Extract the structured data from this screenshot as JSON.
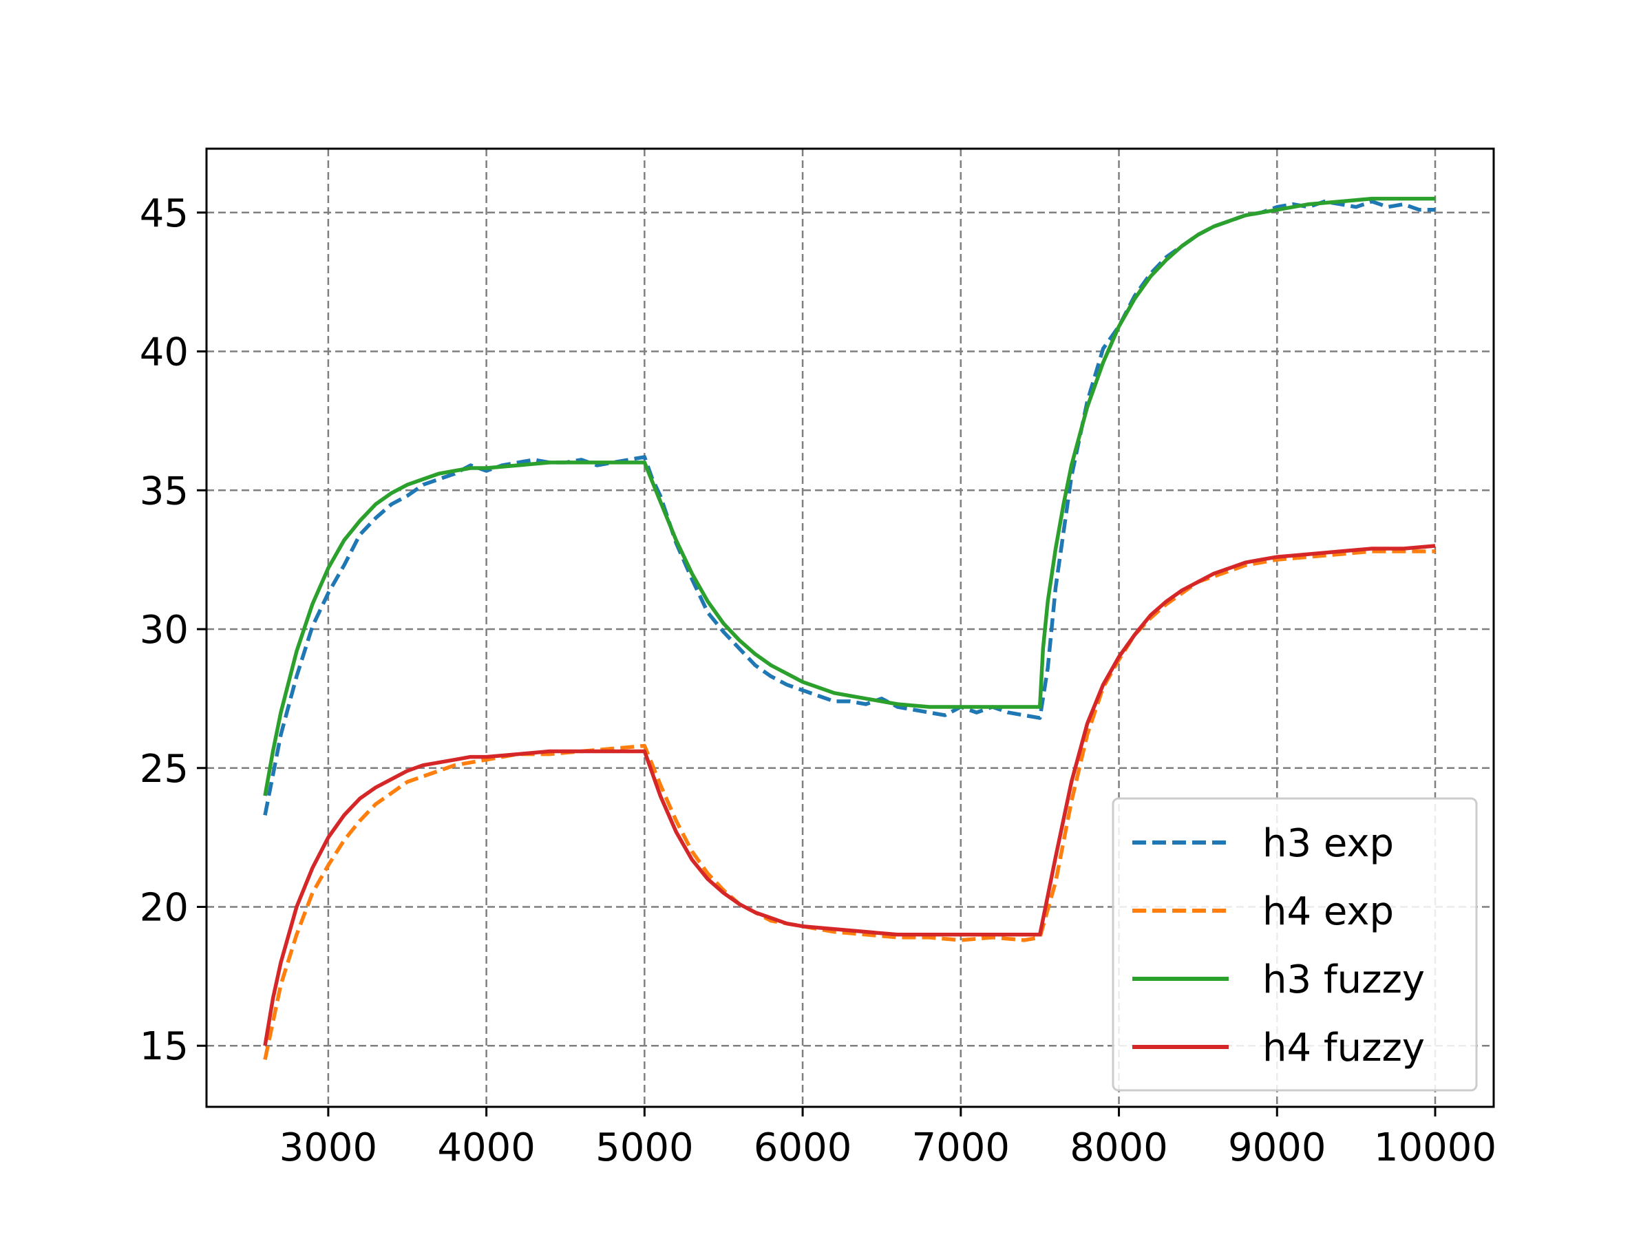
{
  "chart_data": {
    "type": "line",
    "title": "",
    "xlabel": "",
    "ylabel": "",
    "xlim": [
      2230,
      10370
    ],
    "ylim": [
      12.8,
      47.3
    ],
    "xticks": [
      3000,
      4000,
      5000,
      6000,
      7000,
      8000,
      9000,
      10000
    ],
    "yticks": [
      15,
      20,
      25,
      30,
      35,
      40,
      45
    ],
    "grid": true,
    "legend_position": "lower-right",
    "series": [
      {
        "name": "h3 exp",
        "style": "dashed",
        "color": "#1f77b4",
        "x": [
          2600,
          2700,
          2800,
          2900,
          3000,
          3100,
          3200,
          3300,
          3400,
          3500,
          3600,
          3700,
          3800,
          3900,
          4000,
          4100,
          4200,
          4300,
          4400,
          4500,
          4600,
          4700,
          4800,
          4900,
          5000,
          5050,
          5100,
          5200,
          5300,
          5400,
          5500,
          5600,
          5700,
          5800,
          5900,
          6000,
          6100,
          6200,
          6300,
          6400,
          6500,
          6600,
          6700,
          6800,
          6900,
          7000,
          7100,
          7200,
          7300,
          7400,
          7500,
          7550,
          7600,
          7650,
          7700,
          7800,
          7900,
          8000,
          8100,
          8200,
          8300,
          8400,
          8500,
          8600,
          8700,
          8800,
          8900,
          9000,
          9100,
          9200,
          9300,
          9400,
          9500,
          9600,
          9700,
          9800,
          9900,
          10000
        ],
        "y": [
          23.3,
          26.2,
          28.3,
          30.1,
          31.3,
          32.3,
          33.4,
          34.0,
          34.5,
          34.8,
          35.2,
          35.4,
          35.6,
          35.9,
          35.7,
          35.9,
          36.0,
          36.1,
          36.0,
          36.0,
          36.1,
          35.9,
          36.0,
          36.1,
          36.2,
          35.4,
          34.8,
          33.1,
          31.8,
          30.6,
          29.9,
          29.3,
          28.7,
          28.3,
          28.0,
          27.8,
          27.6,
          27.4,
          27.4,
          27.3,
          27.5,
          27.2,
          27.1,
          27.0,
          26.9,
          27.2,
          27.0,
          27.2,
          27.0,
          26.9,
          26.8,
          28.6,
          31.5,
          33.5,
          35.5,
          38.2,
          40.1,
          40.9,
          42.0,
          42.8,
          43.4,
          43.8,
          44.2,
          44.5,
          44.7,
          44.9,
          45.0,
          45.2,
          45.3,
          45.2,
          45.4,
          45.3,
          45.2,
          45.4,
          45.2,
          45.3,
          45.1,
          45.1
        ]
      },
      {
        "name": "h4 exp",
        "style": "dashed",
        "color": "#ff7f0e",
        "x": [
          2600,
          2700,
          2800,
          2900,
          3000,
          3100,
          3200,
          3300,
          3400,
          3500,
          3600,
          3700,
          3800,
          3900,
          4000,
          4200,
          4400,
          4600,
          4800,
          5000,
          5100,
          5200,
          5300,
          5400,
          5500,
          5600,
          5700,
          5800,
          5900,
          6000,
          6200,
          6400,
          6600,
          6800,
          7000,
          7200,
          7400,
          7500,
          7600,
          7700,
          7800,
          7900,
          8000,
          8100,
          8200,
          8300,
          8400,
          8500,
          8600,
          8700,
          8800,
          8900,
          9000,
          9200,
          9400,
          9600,
          9800,
          10000
        ],
        "y": [
          14.5,
          17.2,
          19.0,
          20.5,
          21.5,
          22.4,
          23.1,
          23.7,
          24.1,
          24.5,
          24.7,
          24.9,
          25.1,
          25.2,
          25.3,
          25.5,
          25.5,
          25.6,
          25.7,
          25.8,
          24.4,
          23.1,
          22.0,
          21.2,
          20.6,
          20.1,
          19.8,
          19.5,
          19.4,
          19.3,
          19.1,
          19.0,
          18.9,
          18.9,
          18.8,
          18.9,
          18.8,
          18.9,
          20.9,
          23.8,
          26.2,
          27.9,
          28.9,
          29.8,
          30.4,
          30.9,
          31.3,
          31.7,
          31.9,
          32.1,
          32.3,
          32.4,
          32.5,
          32.6,
          32.7,
          32.8,
          32.8,
          32.8
        ]
      },
      {
        "name": "h3 fuzzy",
        "style": "solid",
        "color": "#2ca02c",
        "x": [
          2600,
          2650,
          2700,
          2800,
          2900,
          3000,
          3100,
          3200,
          3300,
          3400,
          3500,
          3600,
          3700,
          3800,
          3900,
          4000,
          4200,
          4400,
          4600,
          4800,
          5000,
          5050,
          5100,
          5200,
          5300,
          5400,
          5500,
          5600,
          5700,
          5800,
          5900,
          6000,
          6200,
          6400,
          6600,
          6800,
          7000,
          7200,
          7400,
          7500,
          7520,
          7550,
          7600,
          7650,
          7700,
          7800,
          7900,
          8000,
          8100,
          8200,
          8300,
          8400,
          8500,
          8600,
          8700,
          8800,
          8900,
          9000,
          9200,
          9400,
          9600,
          9800,
          10000
        ],
        "y": [
          24.0,
          25.6,
          27.0,
          29.2,
          30.9,
          32.2,
          33.2,
          33.9,
          34.5,
          34.9,
          35.2,
          35.4,
          35.6,
          35.7,
          35.8,
          35.8,
          35.9,
          36.0,
          36.0,
          36.0,
          36.0,
          35.3,
          34.6,
          33.2,
          32.0,
          31.0,
          30.2,
          29.6,
          29.1,
          28.7,
          28.4,
          28.1,
          27.7,
          27.5,
          27.3,
          27.2,
          27.2,
          27.2,
          27.2,
          27.2,
          29.3,
          31.0,
          32.9,
          34.5,
          35.9,
          38.0,
          39.6,
          40.9,
          41.9,
          42.7,
          43.3,
          43.8,
          44.2,
          44.5,
          44.7,
          44.9,
          45.0,
          45.1,
          45.3,
          45.4,
          45.5,
          45.5,
          45.5
        ]
      },
      {
        "name": "h4 fuzzy",
        "style": "solid",
        "color": "#d62728",
        "x": [
          2600,
          2650,
          2700,
          2800,
          2900,
          3000,
          3100,
          3200,
          3300,
          3400,
          3500,
          3600,
          3700,
          3800,
          3900,
          4000,
          4200,
          4400,
          4600,
          4800,
          5000,
          5100,
          5200,
          5300,
          5400,
          5500,
          5600,
          5700,
          5800,
          5900,
          6000,
          6200,
          6400,
          6600,
          6800,
          7000,
          7200,
          7400,
          7500,
          7550,
          7600,
          7700,
          7800,
          7900,
          8000,
          8100,
          8200,
          8300,
          8400,
          8500,
          8600,
          8700,
          8800,
          8900,
          9000,
          9200,
          9400,
          9600,
          9800,
          10000
        ],
        "y": [
          15.0,
          16.7,
          18.0,
          20.0,
          21.4,
          22.5,
          23.3,
          23.9,
          24.3,
          24.6,
          24.9,
          25.1,
          25.2,
          25.3,
          25.4,
          25.4,
          25.5,
          25.6,
          25.6,
          25.6,
          25.6,
          24.0,
          22.7,
          21.7,
          21.0,
          20.5,
          20.1,
          19.8,
          19.6,
          19.4,
          19.3,
          19.2,
          19.1,
          19.0,
          19.0,
          19.0,
          19.0,
          19.0,
          19.0,
          20.4,
          21.8,
          24.5,
          26.6,
          28.0,
          29.0,
          29.8,
          30.5,
          31.0,
          31.4,
          31.7,
          32.0,
          32.2,
          32.4,
          32.5,
          32.6,
          32.7,
          32.8,
          32.9,
          32.9,
          33.0
        ]
      }
    ]
  }
}
